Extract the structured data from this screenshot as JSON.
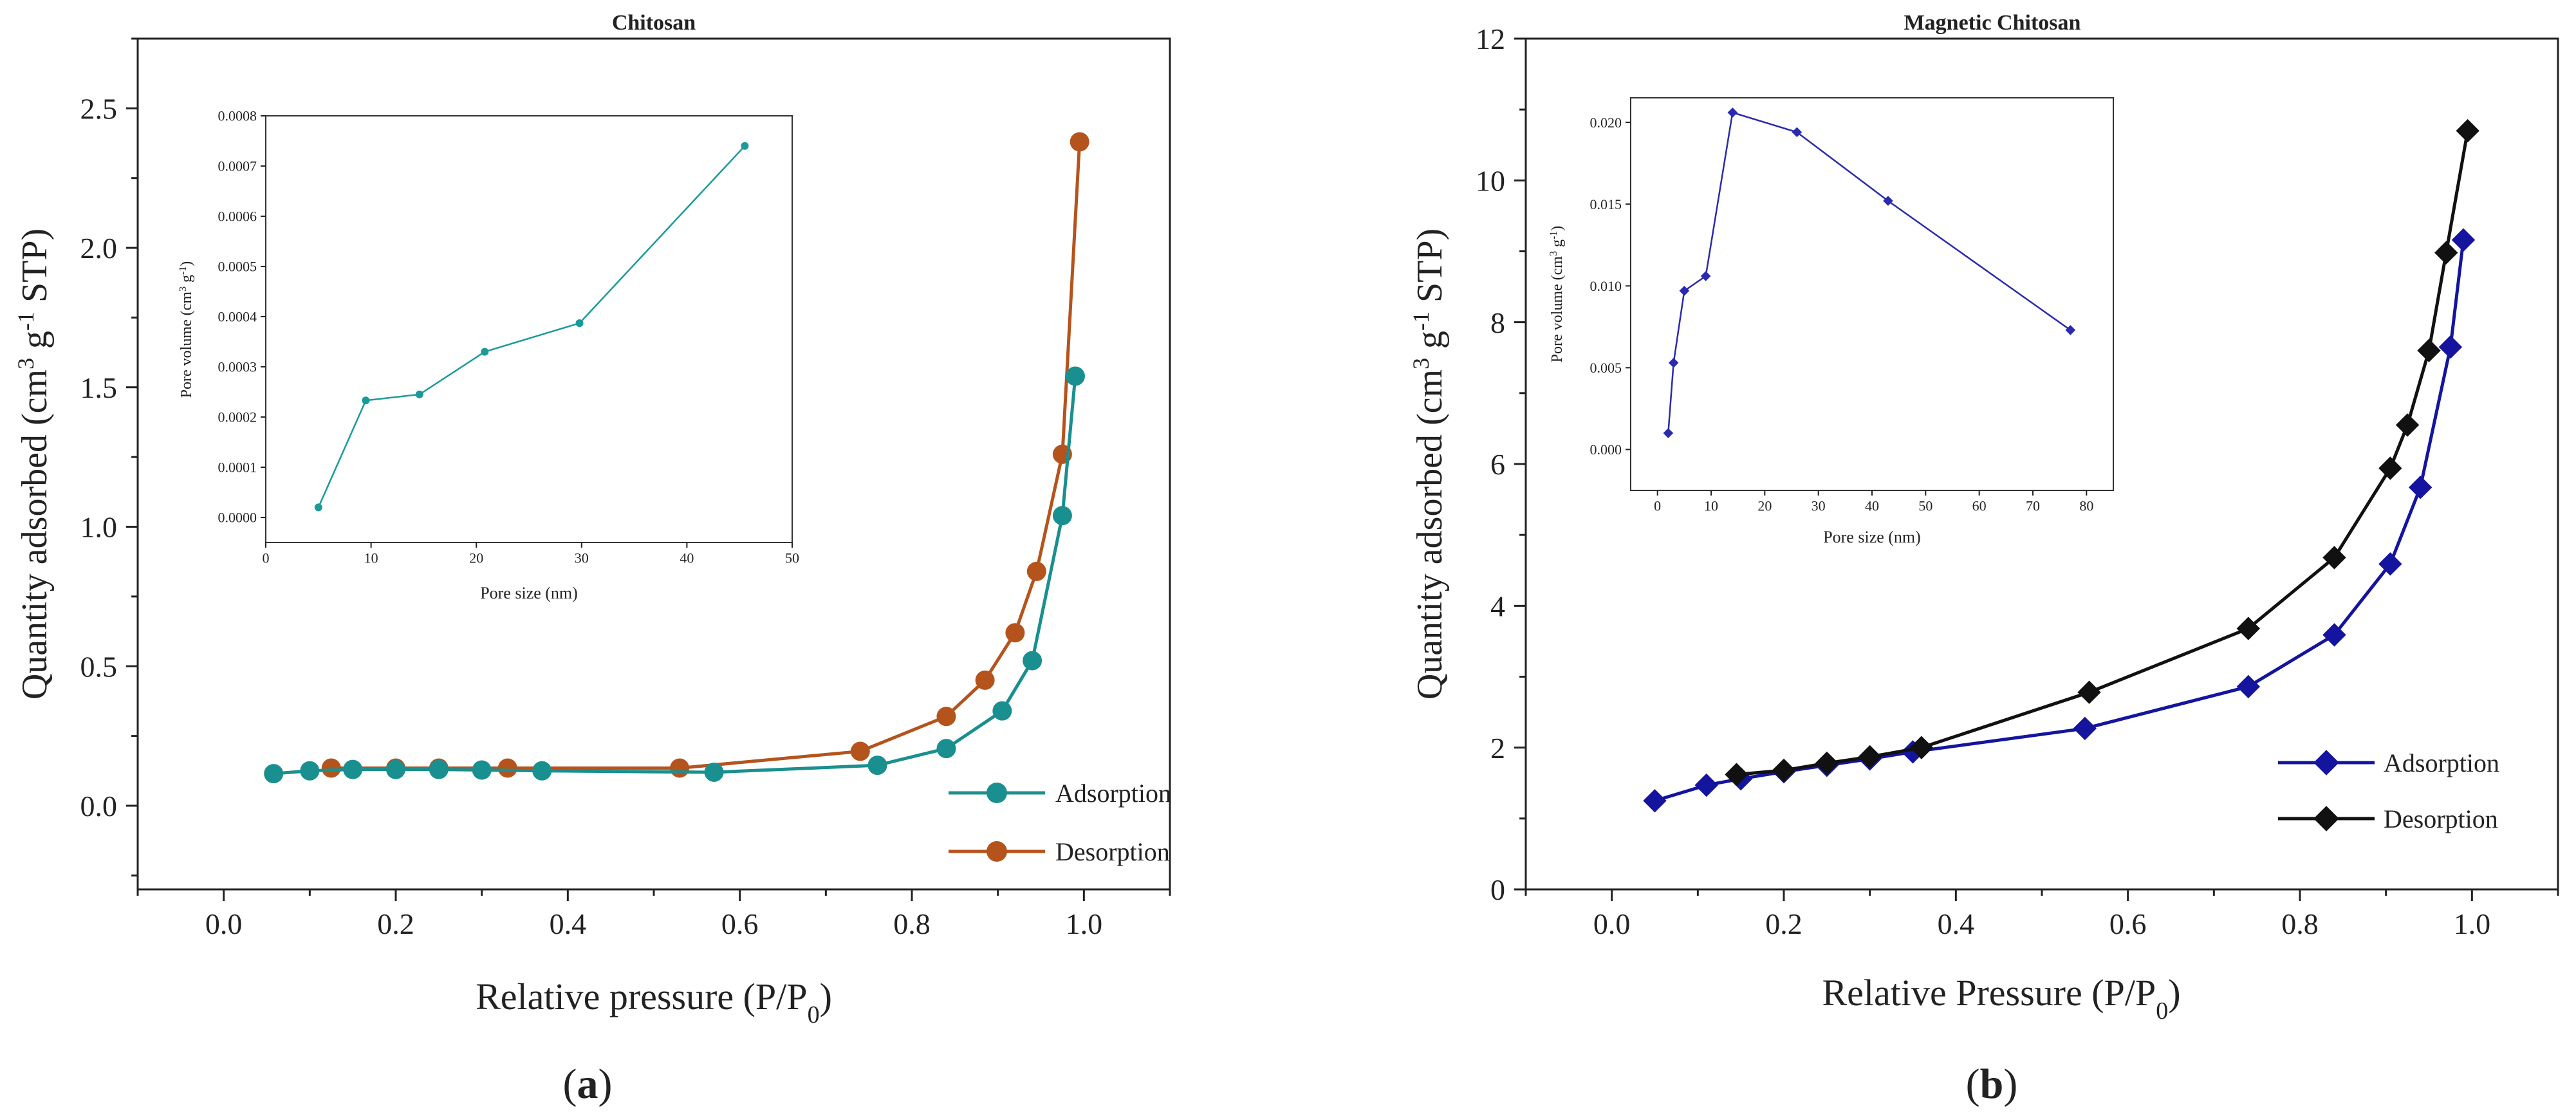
{
  "chart_data": [
    {
      "panel_label": "a",
      "type": "line",
      "title": "Chitosan",
      "xlabel": "Relative pressure (P/P",
      "xlabel_sub": "0",
      "xlabel_end": ")",
      "ylabel_parts": [
        "Quantity adsorbed (cm",
        "3",
        " g",
        "-1",
        " STP)"
      ],
      "xlim": [
        -0.1,
        1.1
      ],
      "ylim": [
        -0.3,
        2.75
      ],
      "xticks": [
        "0.0",
        "0.2",
        "0.4",
        "0.6",
        "0.8",
        "1.0"
      ],
      "xtick_values": [
        0.0,
        0.2,
        0.4,
        0.6,
        0.8,
        1.0
      ],
      "yticks": [
        "0.0",
        "0.5",
        "1.0",
        "1.5",
        "2.0",
        "2.5"
      ],
      "ytick_values": [
        0.0,
        0.5,
        1.0,
        1.5,
        2.0,
        2.5
      ],
      "legend_position": "lower-right",
      "series": [
        {
          "name": "Adsorption",
          "color": "#1a8f8f",
          "marker": "circle",
          "x": [
            0.058,
            0.1,
            0.15,
            0.2,
            0.25,
            0.3,
            0.37,
            0.57,
            0.76,
            0.84,
            0.905,
            0.94,
            0.975,
            0.99
          ],
          "y": [
            0.115,
            0.125,
            0.13,
            0.13,
            0.13,
            0.128,
            0.125,
            0.12,
            0.145,
            0.205,
            0.34,
            0.52,
            1.04,
            1.54
          ]
        },
        {
          "name": "Desorption",
          "color": "#b5531c",
          "marker": "circle",
          "x": [
            0.125,
            0.2,
            0.25,
            0.33,
            0.53,
            0.74,
            0.84,
            0.885,
            0.92,
            0.945,
            0.975,
            0.995
          ],
          "y": [
            0.135,
            0.135,
            0.135,
            0.135,
            0.135,
            0.195,
            0.32,
            0.45,
            0.62,
            0.84,
            1.26,
            2.38
          ]
        }
      ],
      "inset": {
        "type": "line",
        "xlabel": "Pore size (nm)",
        "ylabel_parts": [
          "Pore volume (cm",
          "3",
          " g",
          "-1",
          ")"
        ],
        "xlim": [
          0,
          50
        ],
        "ylim": [
          -5e-05,
          0.0008
        ],
        "xticks": [
          "0",
          "10",
          "20",
          "30",
          "40",
          "50"
        ],
        "xtick_values": [
          0,
          10,
          20,
          30,
          40,
          50
        ],
        "yticks": [
          "0.0000",
          "0.0001",
          "0.0002",
          "0.0003",
          "0.0004",
          "0.0005",
          "0.0006",
          "0.0007",
          "0.0008"
        ],
        "ytick_values": [
          0,
          0.0001,
          0.0002,
          0.0003,
          0.0004,
          0.0005,
          0.0006,
          0.0007,
          0.0008
        ],
        "color": "#1a9a9a",
        "marker": "circle",
        "x": [
          5.0,
          9.5,
          14.6,
          20.8,
          29.8,
          45.5
        ],
        "y": [
          2e-05,
          0.000233,
          0.000245,
          0.00033,
          0.000387,
          0.00074
        ]
      }
    },
    {
      "panel_label": "b",
      "type": "line",
      "title": "Magnetic Chitosan",
      "xlabel": "Relative Pressure (P/P",
      "xlabel_sub": "0",
      "xlabel_end": ")",
      "ylabel_parts": [
        "Quantity adsorbed (cm",
        "3",
        " g",
        "-1",
        " STP)"
      ],
      "xlim": [
        -0.1,
        1.1
      ],
      "ylim": [
        0,
        12
      ],
      "xticks": [
        "0.0",
        "0.2",
        "0.4",
        "0.6",
        "0.8",
        "1.0"
      ],
      "xtick_values": [
        0.0,
        0.2,
        0.4,
        0.6,
        0.8,
        1.0
      ],
      "yticks": [
        "0",
        "2",
        "4",
        "6",
        "8",
        "10",
        "12"
      ],
      "ytick_values": [
        0,
        2,
        4,
        6,
        8,
        10,
        12
      ],
      "legend_position": "lower-right",
      "series": [
        {
          "name": "Adsorption",
          "color": "#14149e",
          "marker": "diamond",
          "x": [
            0.05,
            0.11,
            0.15,
            0.2,
            0.25,
            0.3,
            0.35,
            0.55,
            0.74,
            0.84,
            0.905,
            0.94,
            0.975,
            0.99
          ],
          "y": [
            1.25,
            1.47,
            1.56,
            1.66,
            1.75,
            1.84,
            1.94,
            2.27,
            2.86,
            3.59,
            4.59,
            5.67,
            7.65,
            9.16
          ]
        },
        {
          "name": "Desorption",
          "color": "#111111",
          "marker": "diamond",
          "x": [
            0.145,
            0.2,
            0.25,
            0.3,
            0.36,
            0.555,
            0.74,
            0.84,
            0.905,
            0.925,
            0.95,
            0.97,
            0.995
          ],
          "y": [
            1.62,
            1.68,
            1.78,
            1.87,
            2.0,
            2.78,
            3.68,
            4.68,
            5.94,
            6.55,
            7.6,
            8.98,
            10.7
          ]
        }
      ],
      "inset": {
        "type": "line",
        "xlabel": "Pore size (nm)",
        "ylabel_parts": [
          "Pore volume (cm",
          "3",
          " g",
          "-1",
          ")"
        ],
        "xlim": [
          -5,
          85
        ],
        "ylim": [
          -0.0025,
          0.0215
        ],
        "xticks": [
          "0",
          "10",
          "20",
          "30",
          "40",
          "50",
          "60",
          "70",
          "80"
        ],
        "xtick_values": [
          0,
          10,
          20,
          30,
          40,
          50,
          60,
          70,
          80
        ],
        "yticks": [
          "0.000",
          "0.005",
          "0.010",
          "0.015",
          "0.020"
        ],
        "ytick_values": [
          0,
          0.005,
          0.01,
          0.015,
          0.02
        ],
        "color": "#2a2ab0",
        "marker": "diamond",
        "x": [
          2.0,
          3.0,
          5.0,
          9.0,
          14.0,
          26.0,
          43.0,
          77.0
        ],
        "y": [
          0.001,
          0.0053,
          0.0097,
          0.0106,
          0.0206,
          0.0194,
          0.0152,
          0.0073
        ]
      }
    }
  ]
}
